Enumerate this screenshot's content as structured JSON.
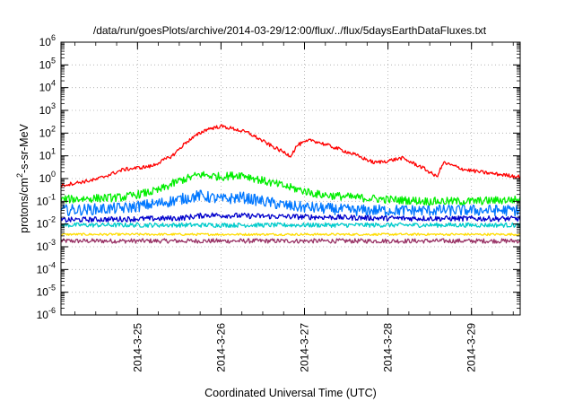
{
  "chart_data": {
    "type": "line",
    "title": "/data/run/goesPlots/archive/2014-03-29/12:00/flux/../flux/5daysEarthDataFluxes.txt",
    "xlabel": "Coordinated Universal Time (UTC)",
    "ylabel": {
      "pre": "protons/cm",
      "sup": "2",
      "post": "-s-sr-MeV"
    },
    "x_scale": "date",
    "xlim": [
      "2014-03-24T02:00",
      "2014-03-29T14:00"
    ],
    "x_ticks": [
      {
        "x": "2014-03-25T00:00",
        "label": "2014-3-25"
      },
      {
        "x": "2014-03-26T00:00",
        "label": "2014-3-26"
      },
      {
        "x": "2014-03-27T00:00",
        "label": "2014-3-27"
      },
      {
        "x": "2014-03-28T00:00",
        "label": "2014-3-28"
      },
      {
        "x": "2014-03-29T00:00",
        "label": "2014-3-29"
      }
    ],
    "y_scale": "log",
    "ylim": [
      1e-06,
      1000000.0
    ],
    "y_ticks": [
      {
        "exp": -6
      },
      {
        "exp": -5
      },
      {
        "exp": -4
      },
      {
        "exp": -3
      },
      {
        "exp": -2
      },
      {
        "exp": -1
      },
      {
        "exp": 0
      },
      {
        "exp": 1
      },
      {
        "exp": 2
      },
      {
        "exp": 3
      },
      {
        "exp": 4
      },
      {
        "exp": 5
      },
      {
        "exp": 6
      }
    ],
    "y_tick_base": "10",
    "grid": true,
    "legend": "none",
    "series": [
      {
        "color": "#ff0000",
        "noise": 0.08,
        "x": [
          "2014-03-24T02:00",
          "2014-03-24T12:00",
          "2014-03-24T20:00",
          "2014-03-25T04:00",
          "2014-03-25T10:00",
          "2014-03-25T14:00",
          "2014-03-25T18:00",
          "2014-03-25T20:00",
          "2014-03-26T00:00",
          "2014-03-26T04:00",
          "2014-03-26T08:00",
          "2014-03-26T14:00",
          "2014-03-26T20:00",
          "2014-03-26T22:00",
          "2014-03-27T02:00",
          "2014-03-27T08:00",
          "2014-03-27T14:00",
          "2014-03-27T20:00",
          "2014-03-28T00:00",
          "2014-03-28T04:00",
          "2014-03-28T10:00",
          "2014-03-28T14:00",
          "2014-03-28T16:00",
          "2014-03-28T22:00",
          "2014-03-29T04:00",
          "2014-03-29T14:00"
        ],
        "y": [
          0.5,
          0.9,
          2.5,
          3.5,
          10,
          40,
          100,
          150,
          200,
          150,
          100,
          30,
          10,
          30,
          50,
          25,
          12,
          5,
          6,
          8,
          3,
          1.2,
          5,
          2.5,
          1.8,
          1.2
        ]
      },
      {
        "color": "#00ee00",
        "noise": 0.18,
        "x": [
          "2014-03-24T02:00",
          "2014-03-24T20:00",
          "2014-03-25T06:00",
          "2014-03-25T12:00",
          "2014-03-25T18:00",
          "2014-03-26T00:00",
          "2014-03-26T06:00",
          "2014-03-26T12:00",
          "2014-03-26T20:00",
          "2014-03-27T04:00",
          "2014-03-27T14:00",
          "2014-03-28T00:00",
          "2014-03-28T12:00",
          "2014-03-29T00:00",
          "2014-03-29T14:00"
        ],
        "y": [
          0.12,
          0.15,
          0.3,
          0.8,
          1.5,
          1.2,
          1.5,
          0.8,
          0.4,
          0.2,
          0.15,
          0.12,
          0.1,
          0.1,
          0.12
        ]
      },
      {
        "color": "#0077ff",
        "noise": 0.25,
        "x": [
          "2014-03-24T02:00",
          "2014-03-24T20:00",
          "2014-03-25T06:00",
          "2014-03-25T12:00",
          "2014-03-25T18:00",
          "2014-03-26T00:00",
          "2014-03-26T06:00",
          "2014-03-26T12:00",
          "2014-03-26T20:00",
          "2014-03-27T04:00",
          "2014-03-27T14:00",
          "2014-03-28T00:00",
          "2014-03-28T12:00",
          "2014-03-29T00:00",
          "2014-03-29T14:00"
        ],
        "y": [
          0.04,
          0.05,
          0.08,
          0.12,
          0.18,
          0.12,
          0.15,
          0.1,
          0.06,
          0.05,
          0.04,
          0.04,
          0.04,
          0.04,
          0.04
        ]
      },
      {
        "color": "#0000cc",
        "noise": 0.12,
        "x": [
          "2014-03-24T02:00",
          "2014-03-25T12:00",
          "2014-03-25T20:00",
          "2014-03-26T12:00",
          "2014-03-27T06:00",
          "2014-03-28T00:00",
          "2014-03-29T14:00"
        ],
        "y": [
          0.015,
          0.018,
          0.025,
          0.022,
          0.02,
          0.018,
          0.017
        ]
      },
      {
        "color": "#00cccc",
        "noise": 0.1,
        "x": [
          "2014-03-24T02:00",
          "2014-03-29T14:00"
        ],
        "y": [
          0.009,
          0.009
        ]
      },
      {
        "color": "#ffdd00",
        "noise": 0.05,
        "x": [
          "2014-03-24T02:00",
          "2014-03-29T14:00"
        ],
        "y": [
          0.0035,
          0.0035
        ]
      },
      {
        "color": "#993366",
        "noise": 0.1,
        "x": [
          "2014-03-24T02:00",
          "2014-03-29T14:00"
        ],
        "y": [
          0.0018,
          0.0018
        ]
      }
    ]
  }
}
